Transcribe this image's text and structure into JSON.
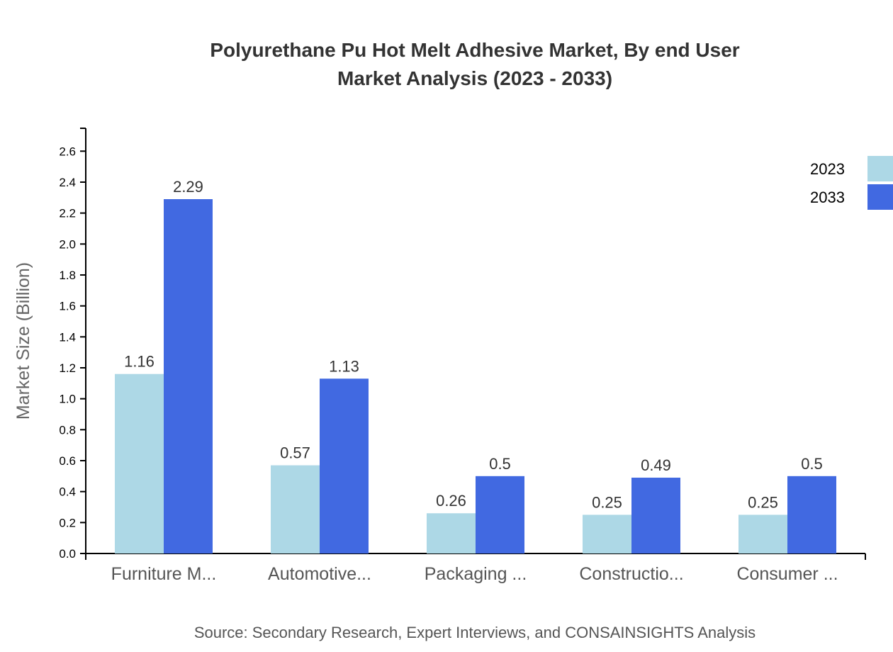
{
  "chart_data": {
    "type": "bar",
    "title": "Polyurethane Pu Hot Melt Adhesive Market, By end User",
    "subtitle": "Market Analysis (2023 - 2033)",
    "ylabel": "Market Size (Billion)",
    "xlabel": "",
    "ylim": [
      0,
      2.748
    ],
    "yticks": [
      "0.0",
      "0.2",
      "0.4",
      "0.6",
      "0.8",
      "1.0",
      "1.2",
      "1.4",
      "1.6",
      "1.8",
      "2.0",
      "2.2",
      "2.4",
      "2.6"
    ],
    "categories": [
      "Furniture M...",
      "Automotive...",
      "Packaging ...",
      "Constructio...",
      "Consumer ..."
    ],
    "series": [
      {
        "name": "2023",
        "color": "#ADD8E6",
        "values": [
          1.16,
          0.57,
          0.26,
          0.25,
          0.25
        ],
        "labels": [
          "1.16",
          "0.57",
          "0.26",
          "0.25",
          "0.25"
        ]
      },
      {
        "name": "2033",
        "color": "#4169E1",
        "values": [
          2.29,
          1.13,
          0.5,
          0.49,
          0.5
        ],
        "labels": [
          "2.29",
          "1.13",
          "0.5",
          "0.49",
          "0.5"
        ]
      }
    ],
    "grid": false,
    "legend_position": "top-right",
    "source": "Source: Secondary Research, Expert Interviews, and CONSAINSIGHTS Analysis"
  }
}
